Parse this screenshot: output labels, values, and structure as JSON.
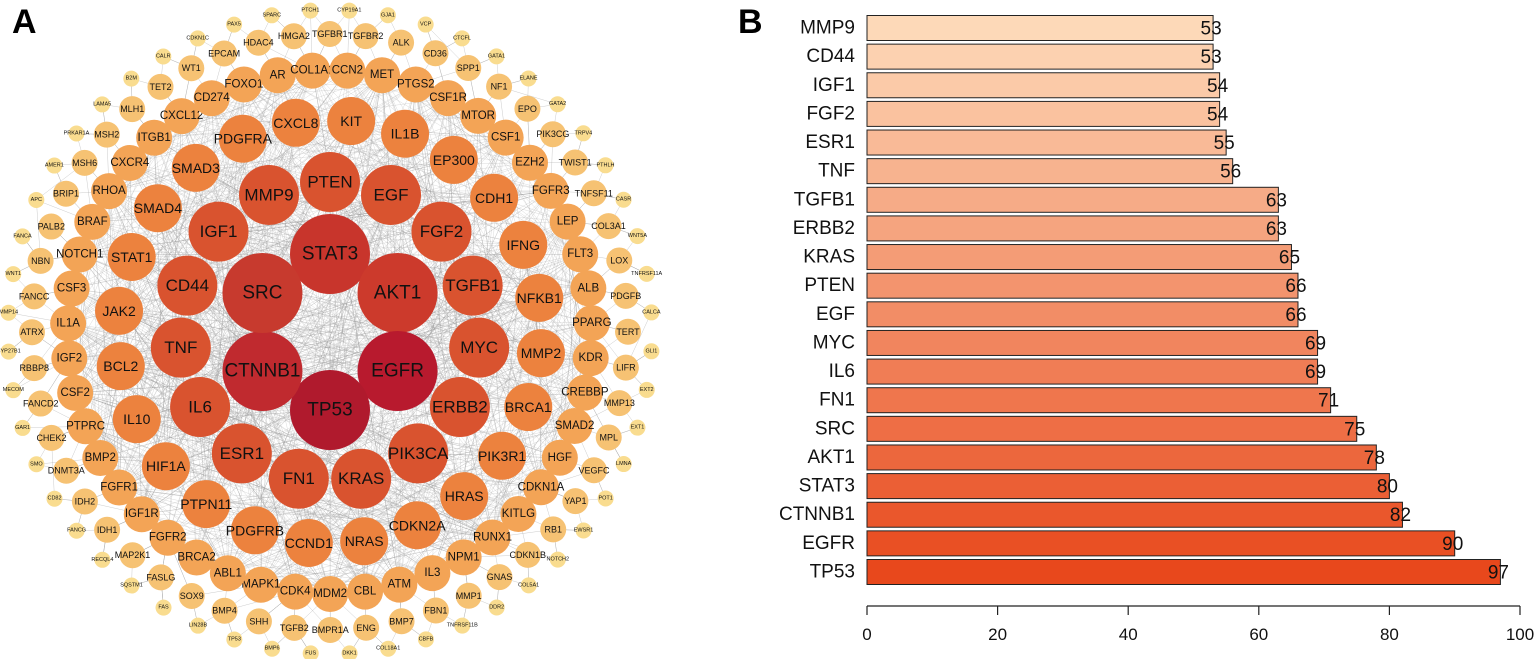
{
  "panels": {
    "a_label": "A",
    "b_label": "B"
  },
  "network": {
    "rings": [
      [
        "STAT3",
        "AKT1",
        "EGFR",
        "TP53",
        "CTNNB1",
        "SRC"
      ],
      [
        "PTEN",
        "EGF",
        "FGF2",
        "TGFB1",
        "MYC",
        "ERBB2",
        "PIK3CA",
        "KRAS",
        "FN1",
        "ESR1",
        "IL6",
        "TNF",
        "CD44",
        "IGF1",
        "MMP9"
      ],
      [
        "KIT",
        "IL1B",
        "EP300",
        "CDH1",
        "IFNG",
        "NFKB1",
        "MMP2",
        "BRCA1",
        "PIK3R1",
        "HRAS",
        "CDKN2A",
        "NRAS",
        "CCND1",
        "PDGFRB",
        "PTPN11",
        "HIF1A",
        "IL10",
        "BCL2",
        "JAK2",
        "STAT1",
        "SMAD4",
        "SMAD3",
        "PDGFRA",
        "CXCL8"
      ],
      [
        "MET",
        "PTGS2",
        "CSF1R",
        "MTOR",
        "CSF1",
        "EZH2",
        "FGFR3",
        "LEP",
        "FLT3",
        "ALB",
        "PPARG",
        "KDR",
        "CREBBP",
        "SMAD2",
        "HGF",
        "CDKN1A",
        "KITLG",
        "RUNX1",
        "NPM1",
        "IL3",
        "ATM",
        "CBL",
        "MDM2",
        "CDK4",
        "MAPK1",
        "ABL1",
        "BRCA2",
        "FGFR2",
        "IGF1R",
        "FGFR1",
        "BMP2",
        "PTPRC",
        "CSF2",
        "IGF2",
        "IL1A",
        "CSF3",
        "NOTCH1",
        "BRAF",
        "RHOA",
        "CXCR4",
        "ITGB1",
        "CXCL12",
        "CD274",
        "FOXO1",
        "AR",
        "COL1A1",
        "CCN2"
      ],
      [
        "TGFBR2",
        "ALK",
        "CD36",
        "SPP1",
        "NF1",
        "EPO",
        "PIK3CG",
        "TWIST1",
        "TNFSF11",
        "COL3A1",
        "LOX",
        "PDGFB",
        "TERT",
        "LIFR",
        "MMP13",
        "MPL",
        "VEGFC",
        "YAP1",
        "RB1",
        "CDKN1B",
        "GNAS",
        "MMP1",
        "FBN1",
        "BMP7",
        "ENG",
        "BMPR1A",
        "TGFB2",
        "SHH",
        "BMP4",
        "SOX9",
        "FASLG",
        "MAP2K1",
        "IDH1",
        "IDH2",
        "DNMT3A",
        "CHEK2",
        "FANCD2",
        "RBBP8",
        "ATRX",
        "FANCC",
        "NBN",
        "PALB2",
        "BRIP1",
        "MSH6",
        "MSH2",
        "MLH1",
        "TET2",
        "WT1",
        "EPCAM",
        "HDAC4",
        "HMGA2",
        "TGFBR1"
      ],
      [
        "CYP19A1",
        "GJA1",
        "VCP",
        "CTCFL",
        "GATA1",
        "ELANE",
        "GATA2",
        "TRPV4",
        "PTHLH",
        "CASR",
        "WNT5A",
        "TNFRSF11A",
        "CALCA",
        "GLI1",
        "EXT2",
        "EXT1",
        "LMNA",
        "POT1",
        "EWSR1",
        "NOTCH2",
        "COL5A1",
        "DDR2",
        "TNFRSF11B",
        "CBFB",
        "COL18A1",
        "DKK1",
        "FUS",
        "BMP6",
        "TP53",
        "LIN28B",
        "FAS",
        "SQSTM1",
        "RECQL4",
        "FANCG",
        "CD82",
        "SMO",
        "GAR1",
        "MECOM",
        "CYP27B1",
        "MMP14",
        "WNT1",
        "FANCA",
        "APC",
        "AMER1",
        "PRKAR1A",
        "LAMA5",
        "B2M",
        "CALR",
        "CDKN1C",
        "PAX5",
        "SPARC",
        "PTCH1"
      ]
    ],
    "ring_colors": [
      "#be1e2d",
      "#d9532f",
      "#ec823e",
      "#f3a456",
      "#f6c273",
      "#f9dc8f"
    ],
    "edge_color": "#9a9a9a"
  },
  "chart_data": {
    "type": "bar",
    "orientation": "horizontal",
    "categories": [
      "MMP9",
      "CD44",
      "IGF1",
      "FGF2",
      "ESR1",
      "TNF",
      "TGFB1",
      "ERBB2",
      "KRAS",
      "PTEN",
      "EGF",
      "MYC",
      "IL6",
      "FN1",
      "SRC",
      "AKT1",
      "STAT3",
      "CTNNB1",
      "EGFR",
      "TP53"
    ],
    "values": [
      53,
      53,
      54,
      54,
      55,
      56,
      63,
      63,
      65,
      66,
      66,
      69,
      69,
      71,
      75,
      78,
      80,
      82,
      90,
      97
    ],
    "xlim": [
      0,
      100
    ],
    "xticks": [
      0,
      20,
      40,
      60,
      80,
      100
    ],
    "title": "",
    "xlabel": "",
    "ylabel": "",
    "color_low": "#fdd9b8",
    "color_high": "#e8481c",
    "grid": false
  }
}
